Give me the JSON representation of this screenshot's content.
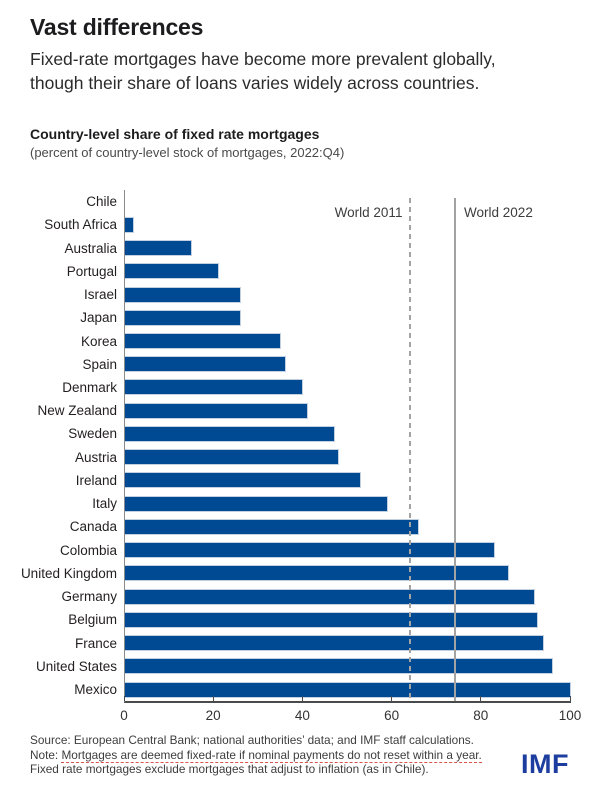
{
  "header": {
    "title": "Vast differences",
    "subtitle": "Fixed-rate mortgages have become more prevalent globally, though their share of loans varies widely across countries."
  },
  "chart": {
    "title": "Country-level share of fixed rate mortgages",
    "subtitle": "(percent of country-level stock of mortgages, 2022:Q4)"
  },
  "chart_data": {
    "type": "bar",
    "orientation": "horizontal",
    "title": "Country-level share of fixed rate mortgages",
    "subtitle": "(percent of country-level stock of mortgages, 2022:Q4)",
    "xlabel": "",
    "ylabel": "",
    "xlim": [
      0,
      100
    ],
    "xticks": [
      0,
      20,
      40,
      60,
      80,
      100
    ],
    "grid": false,
    "bar_color": "#004a93",
    "categories": [
      "Chile",
      "South Africa",
      "Australia",
      "Portugal",
      "Israel",
      "Japan",
      "Korea",
      "Spain",
      "Denmark",
      "New Zealand",
      "Sweden",
      "Austria",
      "Ireland",
      "Italy",
      "Canada",
      "Colombia",
      "United Kingdom",
      "Germany",
      "Belgium",
      "France",
      "United States",
      "Mexico"
    ],
    "values": [
      0,
      2,
      15,
      21,
      26,
      26,
      35,
      36,
      40,
      41,
      47,
      48,
      53,
      59,
      66,
      83,
      86,
      92,
      92.5,
      94,
      96,
      100
    ],
    "reference_lines": [
      {
        "label": "World 2011",
        "value": 64,
        "style": "dashed",
        "label_side": "left"
      },
      {
        "label": "World 2022",
        "value": 74,
        "style": "solid",
        "label_side": "right"
      }
    ]
  },
  "footer": {
    "source": "Source: European Central Bank; national authorities’ data; and IMF staff calculations.",
    "note_prefix": "Note: ",
    "note_underlined": "Mortgages are deemed fixed-rate if nominal payments do not reset within a year.",
    "note_line2": "Fixed rate mortgages exclude mortgages that adjust to inflation (as in Chile).",
    "logo": "IMF"
  }
}
